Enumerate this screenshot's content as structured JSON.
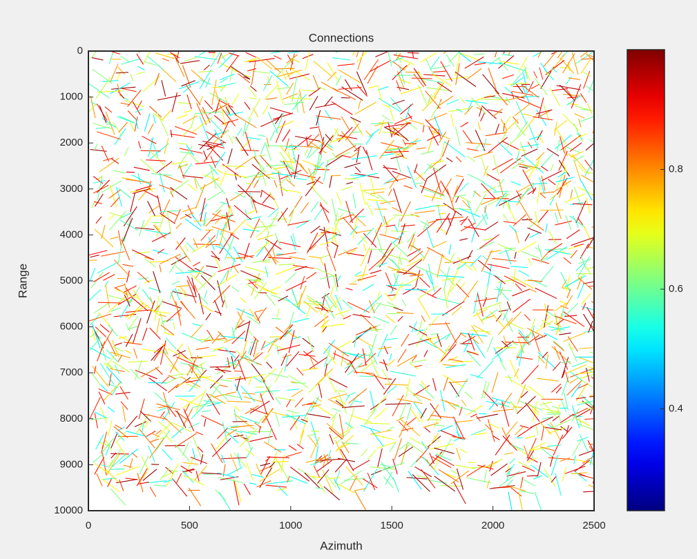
{
  "chart_data": {
    "type": "network",
    "title": "Connections",
    "xlabel": "Azimuth",
    "ylabel": "Range",
    "xlim": [
      0,
      2500
    ],
    "xticks": [
      0,
      500,
      1000,
      1500,
      2000,
      2500
    ],
    "ylim": [
      0,
      10000
    ],
    "yticks": [
      0,
      1000,
      2000,
      3000,
      4000,
      5000,
      6000,
      7000,
      8000,
      9000,
      10000
    ],
    "y_reversed": true,
    "colorbar": {
      "colormap": "jet",
      "clim": [
        0.23,
        1
      ],
      "ticks": [
        0.4,
        0.6,
        0.8
      ]
    }
  }
}
